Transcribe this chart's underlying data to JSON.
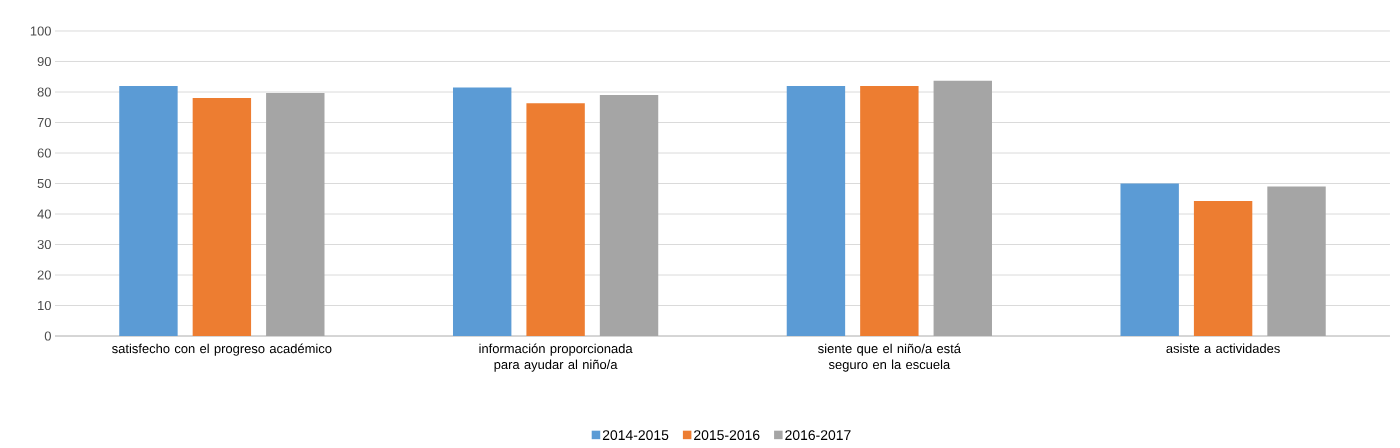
{
  "chart_data": {
    "type": "bar",
    "categories": [
      "satisfecho con el progreso académico",
      "información proporcionada para ayudar al niño/a",
      "siente que el niño/a está seguro en la escuela",
      "asiste a actividades"
    ],
    "series": [
      {
        "name": "2014-2015",
        "color": "#5b9bd5",
        "values": [
          82,
          81.5,
          82,
          50
        ]
      },
      {
        "name": "2015-2016",
        "color": "#ed7d31",
        "values": [
          78,
          76.3,
          82,
          44.3
        ]
      },
      {
        "name": "2016-2017",
        "color": "#a5a5a5",
        "values": [
          79.7,
          79,
          83.7,
          49
        ]
      }
    ],
    "ylim": [
      0,
      100
    ],
    "yticks": [
      0,
      10,
      20,
      30,
      40,
      50,
      60,
      70,
      80,
      90,
      100
    ],
    "grid": "y",
    "legend": "bottom"
  }
}
